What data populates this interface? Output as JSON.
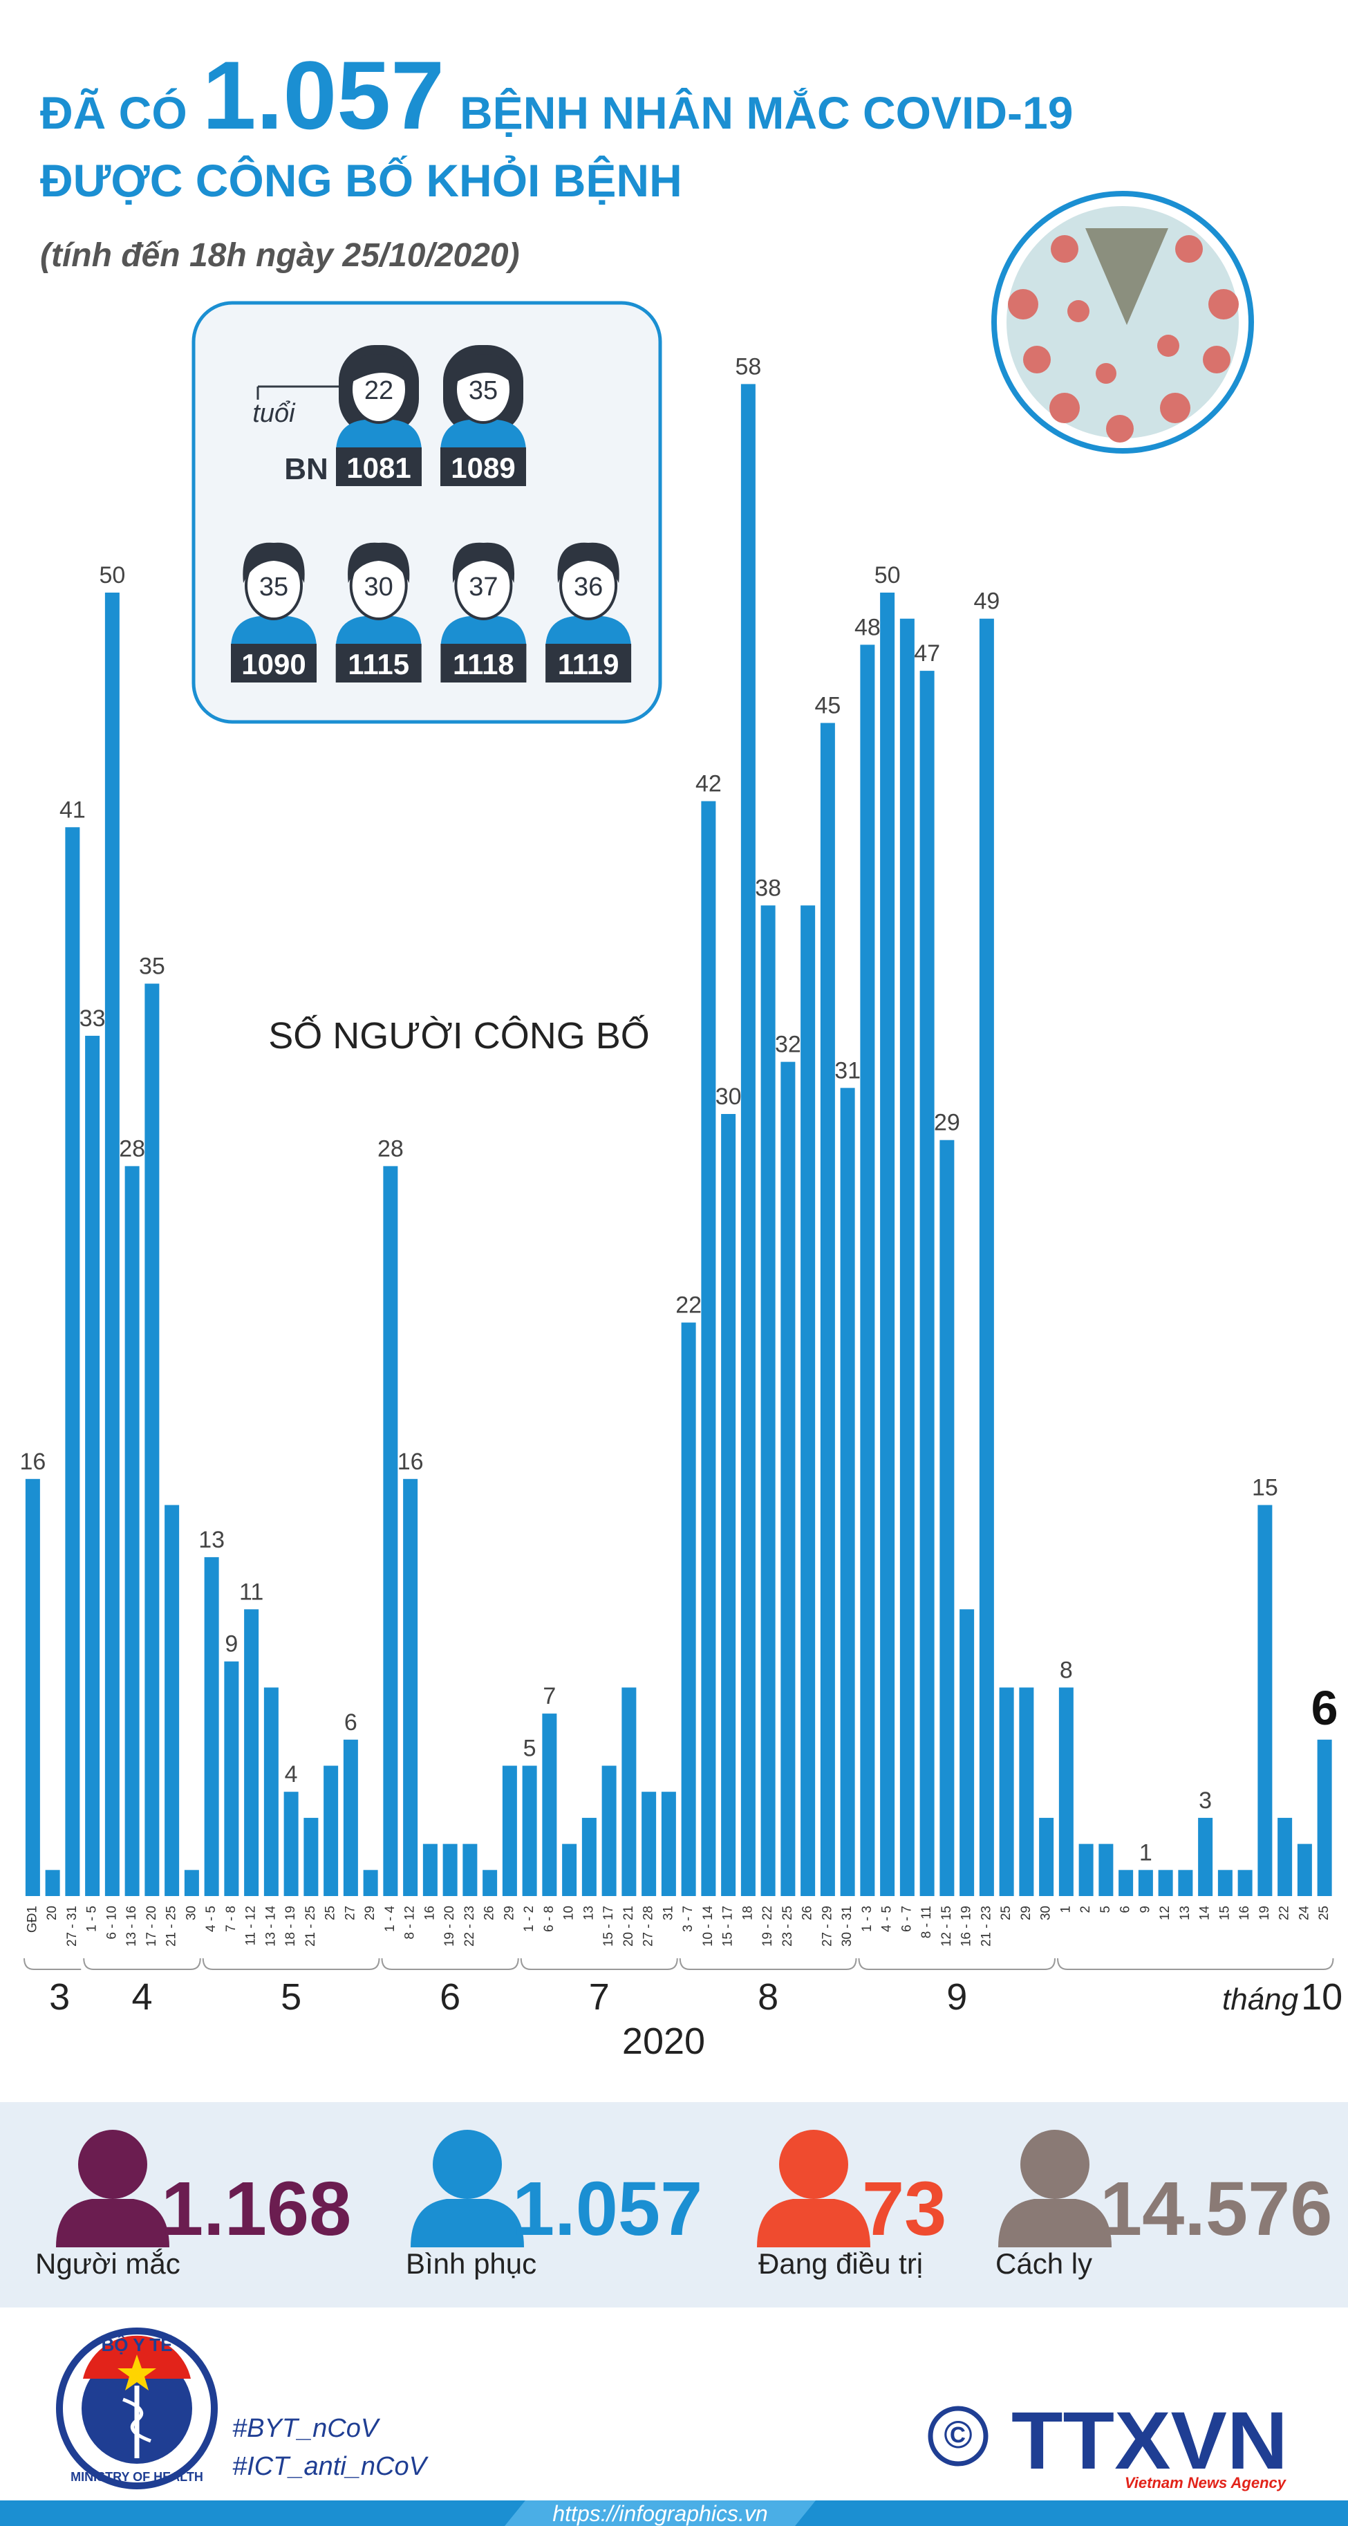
{
  "header": {
    "title_prefix": "ĐÃ CÓ",
    "title_number": "1.057",
    "title_suffix": "BỆNH NHÂN MẮC COVID-19",
    "title_line2": "ĐƯỢC CÔNG BỐ KHỎI BỆNH",
    "subtitle": "(tính đến 18h ngày 25/10/2020)"
  },
  "patients": {
    "age_label": "tuổi",
    "id_label": "BN",
    "women": [
      {
        "age": 22,
        "id": 1081
      },
      {
        "age": 35,
        "id": 1089
      }
    ],
    "men": [
      {
        "age": 35,
        "id": 1090
      },
      {
        "age": 30,
        "id": 1115
      },
      {
        "age": 37,
        "id": 1118
      },
      {
        "age": 36,
        "id": 1119
      }
    ]
  },
  "chart_data": {
    "type": "bar",
    "title": "SỐ NGƯỜI CÔNG BỐ",
    "color": "#1b8fd2",
    "categories": [
      "GĐ1",
      "20",
      "27 - 31",
      "1 - 5",
      "6 - 10",
      "13 - 16",
      "17 - 20",
      "21 - 25",
      "30",
      "4 - 5",
      "7 - 8",
      "11 - 12",
      "13 - 14",
      "18 - 19",
      "21 - 25",
      "25",
      "27",
      "29",
      "1 - 4",
      "8 - 12",
      "16",
      "19 - 20",
      "22 - 23",
      "26",
      "29",
      "1 - 2",
      "6 - 8",
      "10",
      "13",
      "15 - 17",
      "20 - 21",
      "27 - 28",
      "31",
      "3 - 7",
      "10 - 14",
      "15 - 17",
      "18",
      "19 - 22",
      "23 - 25",
      "26",
      "27 - 29",
      "30 - 31",
      "1 - 3",
      "4 - 5",
      "6 - 7",
      "8 - 11",
      "12 - 15",
      "16 - 19",
      "21 - 23",
      "25",
      "29",
      "30",
      "1",
      "2",
      "5",
      "6",
      "9",
      "12",
      "13",
      "14",
      "15",
      "16",
      "19",
      "22",
      "24",
      "25"
    ],
    "values": [
      16,
      1,
      41,
      33,
      50,
      28,
      35,
      15,
      1,
      13,
      9,
      11,
      8,
      4,
      3,
      5,
      6,
      1,
      28,
      16,
      2,
      2,
      2,
      1,
      5,
      5,
      7,
      2,
      3,
      5,
      8,
      4,
      4,
      22,
      42,
      30,
      58,
      38,
      32,
      38,
      45,
      31,
      48,
      50,
      49,
      47,
      29,
      11,
      49,
      8,
      8,
      3,
      8,
      2,
      2,
      1,
      1,
      1,
      1,
      3,
      1,
      1,
      15,
      3,
      2,
      6
    ],
    "value_labels": [
      "16",
      null,
      "41",
      "33",
      "50",
      "28",
      "35",
      null,
      null,
      "13",
      "9",
      "11",
      null,
      "4",
      null,
      null,
      "6",
      null,
      "28",
      "16",
      null,
      null,
      null,
      null,
      null,
      "5",
      "7",
      null,
      null,
      null,
      null,
      null,
      null,
      "22",
      "42",
      "30",
      "58",
      "38",
      "32",
      null,
      "45",
      "31",
      "48",
      "50",
      null,
      "47",
      "29",
      null,
      "49",
      null,
      null,
      null,
      "8",
      null,
      null,
      null,
      "1",
      null,
      null,
      "3",
      null,
      null,
      "15",
      null,
      null,
      "6"
    ],
    "ylim": [
      0,
      60
    ],
    "months": [
      "3",
      "4",
      "5",
      "6",
      "7",
      "8",
      "9",
      "10"
    ],
    "month_prefix": "tháng",
    "year": "2020"
  },
  "stats": [
    {
      "value": "1.168",
      "label": "Người mắc",
      "color": "#6b1d50"
    },
    {
      "value": "1.057",
      "label": "Bình phục",
      "color": "#1b8fd2"
    },
    {
      "value": "73",
      "label": "Đang điều trị",
      "color": "#ef4b2f"
    },
    {
      "value": "14.576",
      "label": "Cách ly",
      "color": "#8a7a75"
    }
  ],
  "footer": {
    "ministry": "BỘ Y TẾ",
    "ministry_en": "MINISTRY OF HEALTH",
    "hashtags": [
      "#BYT_nCoV",
      "#ICT_anti_nCoV"
    ],
    "copyright": "©",
    "agency": "TTXVN",
    "agency_en": "Vietnam News Agency",
    "url": "https://infographics.vn"
  }
}
